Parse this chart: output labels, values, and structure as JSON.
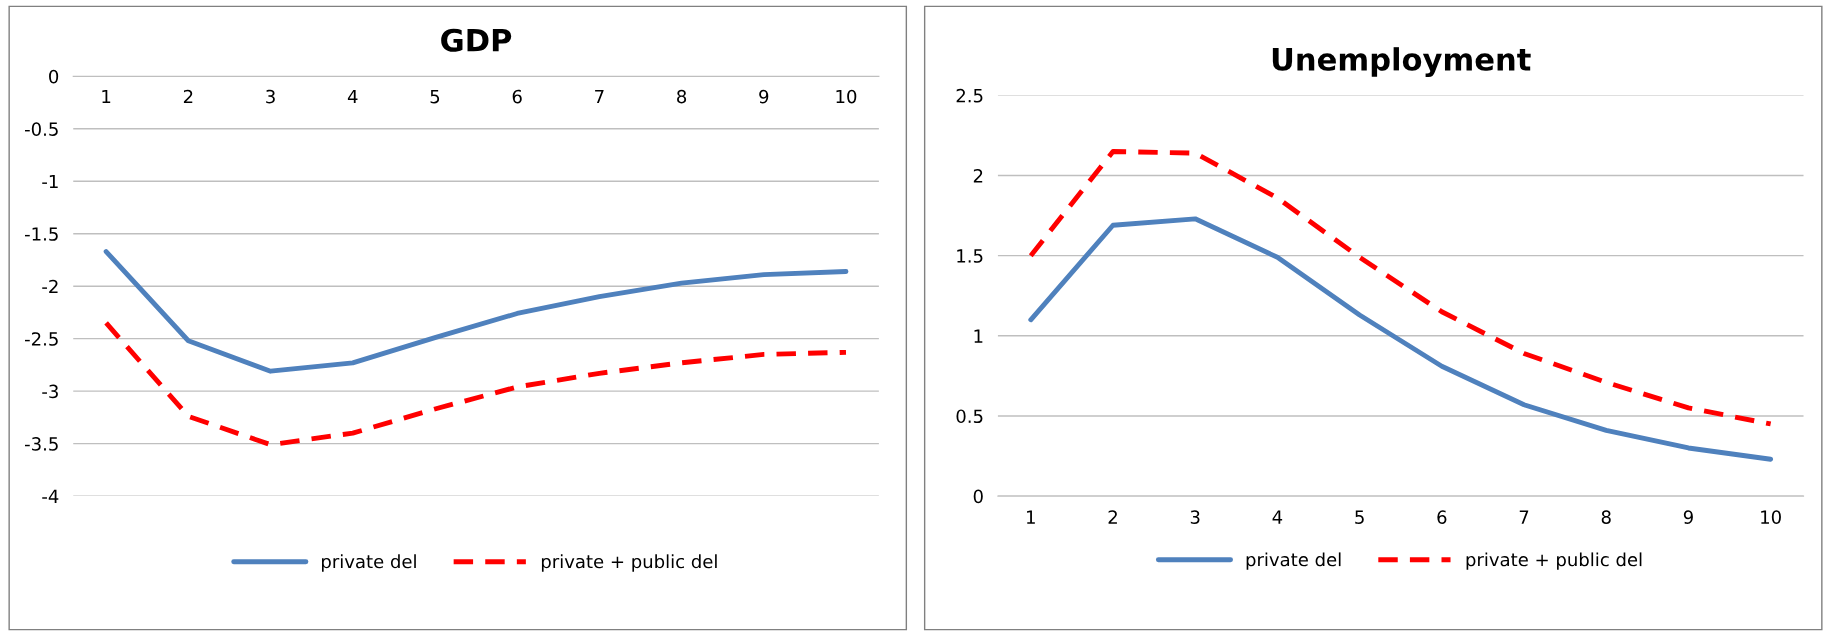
{
  "chart_data": [
    {
      "type": "line",
      "title": "GDP",
      "categories": [
        "1",
        "2",
        "3",
        "4",
        "5",
        "6",
        "7",
        "8",
        "9",
        "10"
      ],
      "ylim": [
        -4,
        0
      ],
      "yticks": [
        -4,
        -3.5,
        -3,
        -2.5,
        -2,
        -1.5,
        -1,
        -0.5,
        0
      ],
      "grid": "y",
      "legend": "bottom",
      "series": [
        {
          "name": "private del",
          "color": "#4f81bd",
          "line_style": "solid",
          "values": [
            -1.67,
            -2.52,
            -2.81,
            -2.73,
            -2.49,
            -2.26,
            -2.1,
            -1.97,
            -1.89,
            -1.86
          ]
        },
        {
          "name": "private + public del",
          "color": "#ff0000",
          "line_style": "dashed",
          "values": [
            -2.35,
            -3.24,
            -3.51,
            -3.4,
            -3.17,
            -2.96,
            -2.83,
            -2.73,
            -2.65,
            -2.63
          ]
        }
      ]
    },
    {
      "type": "line",
      "title": "Unemployment",
      "categories": [
        "1",
        "2",
        "3",
        "4",
        "5",
        "6",
        "7",
        "8",
        "9",
        "10"
      ],
      "ylim": [
        0,
        2.5
      ],
      "yticks": [
        0,
        0.5,
        1,
        1.5,
        2,
        2.5
      ],
      "grid": "y",
      "legend": "bottom",
      "series": [
        {
          "name": "private del",
          "color": "#4f81bd",
          "line_style": "solid",
          "values": [
            1.1,
            1.69,
            1.73,
            1.49,
            1.13,
            0.81,
            0.57,
            0.41,
            0.3,
            0.23
          ]
        },
        {
          "name": "private + public del",
          "color": "#ff0000",
          "line_style": "dashed",
          "values": [
            1.5,
            2.15,
            2.14,
            1.86,
            1.49,
            1.15,
            0.89,
            0.71,
            0.55,
            0.45
          ]
        }
      ]
    }
  ]
}
